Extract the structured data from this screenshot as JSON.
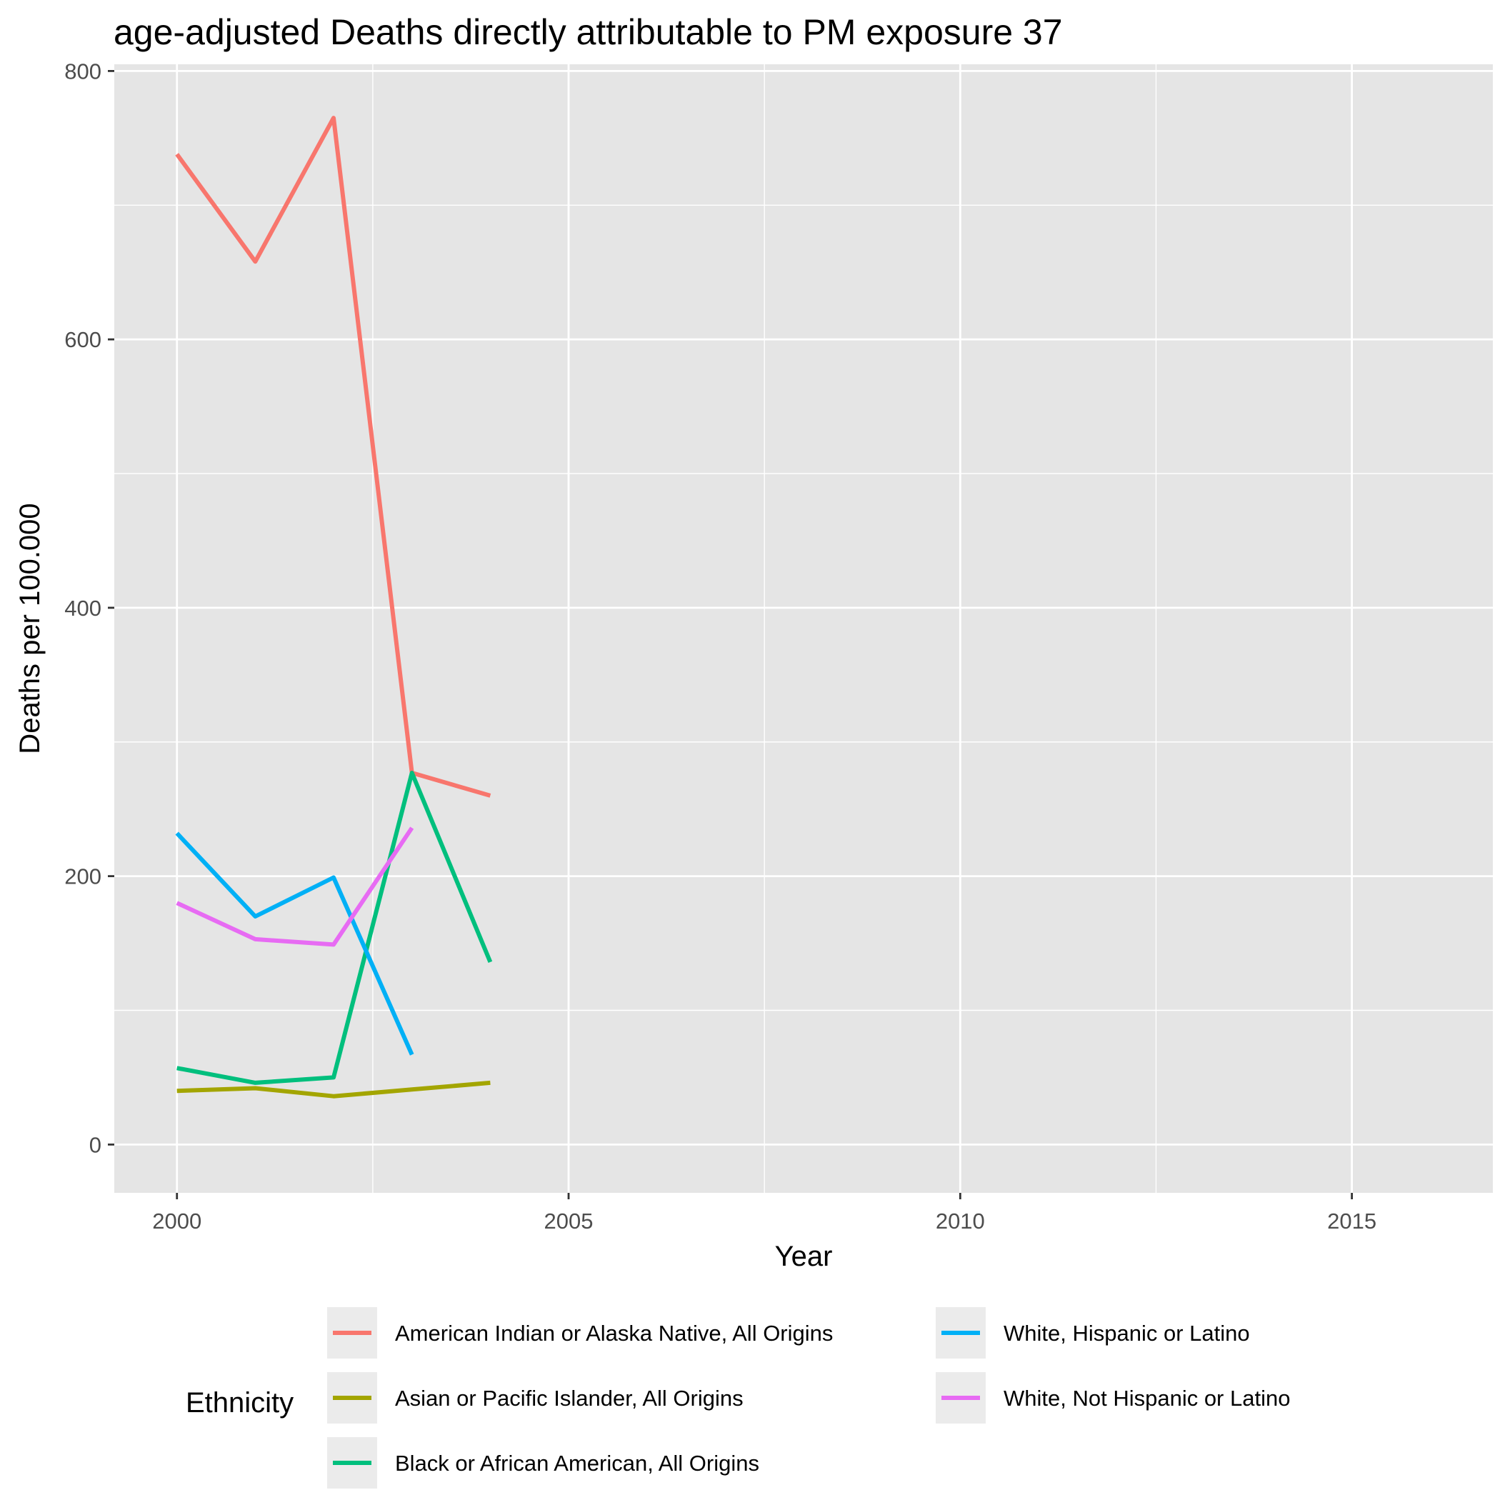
{
  "chart_data": {
    "type": "line",
    "title": "age-adjusted Deaths directly attributable to PM exposure 37",
    "xlabel": "Year",
    "ylabel": "Deaths per 100.000",
    "xlim": [
      1999.2,
      2016.8
    ],
    "ylim": [
      -36,
      805
    ],
    "x_ticks": [
      2000,
      2005,
      2010,
      2015
    ],
    "y_ticks": [
      0,
      200,
      400,
      600,
      800
    ],
    "grid": true,
    "legend": {
      "title": "Ethnicity",
      "position": "bottom"
    },
    "series": [
      {
        "name": "American Indian or Alaska Native, All Origins",
        "color": "#F8766D",
        "x": [
          2000,
          2001,
          2002,
          2003,
          2004
        ],
        "y": [
          738,
          658,
          765,
          277,
          260
        ]
      },
      {
        "name": "Asian or Pacific Islander, All Origins",
        "color": "#A3A500",
        "x": [
          2000,
          2001,
          2002,
          2003,
          2004
        ],
        "y": [
          40,
          42,
          36,
          41,
          46
        ]
      },
      {
        "name": "Black or African American, All Origins",
        "color": "#00BF7D",
        "x": [
          2000,
          2001,
          2002,
          2003,
          2004
        ],
        "y": [
          57,
          46,
          50,
          277,
          136
        ]
      },
      {
        "name": "White, Hispanic or Latino",
        "color": "#00B0F6",
        "x": [
          2000,
          2001,
          2002,
          2003
        ],
        "y": [
          232,
          170,
          199,
          67
        ]
      },
      {
        "name": "White, Not Hispanic or Latino",
        "color": "#E76BF3",
        "x": [
          2000,
          2001,
          2002,
          2003
        ],
        "y": [
          180,
          153,
          149,
          236
        ]
      }
    ]
  }
}
